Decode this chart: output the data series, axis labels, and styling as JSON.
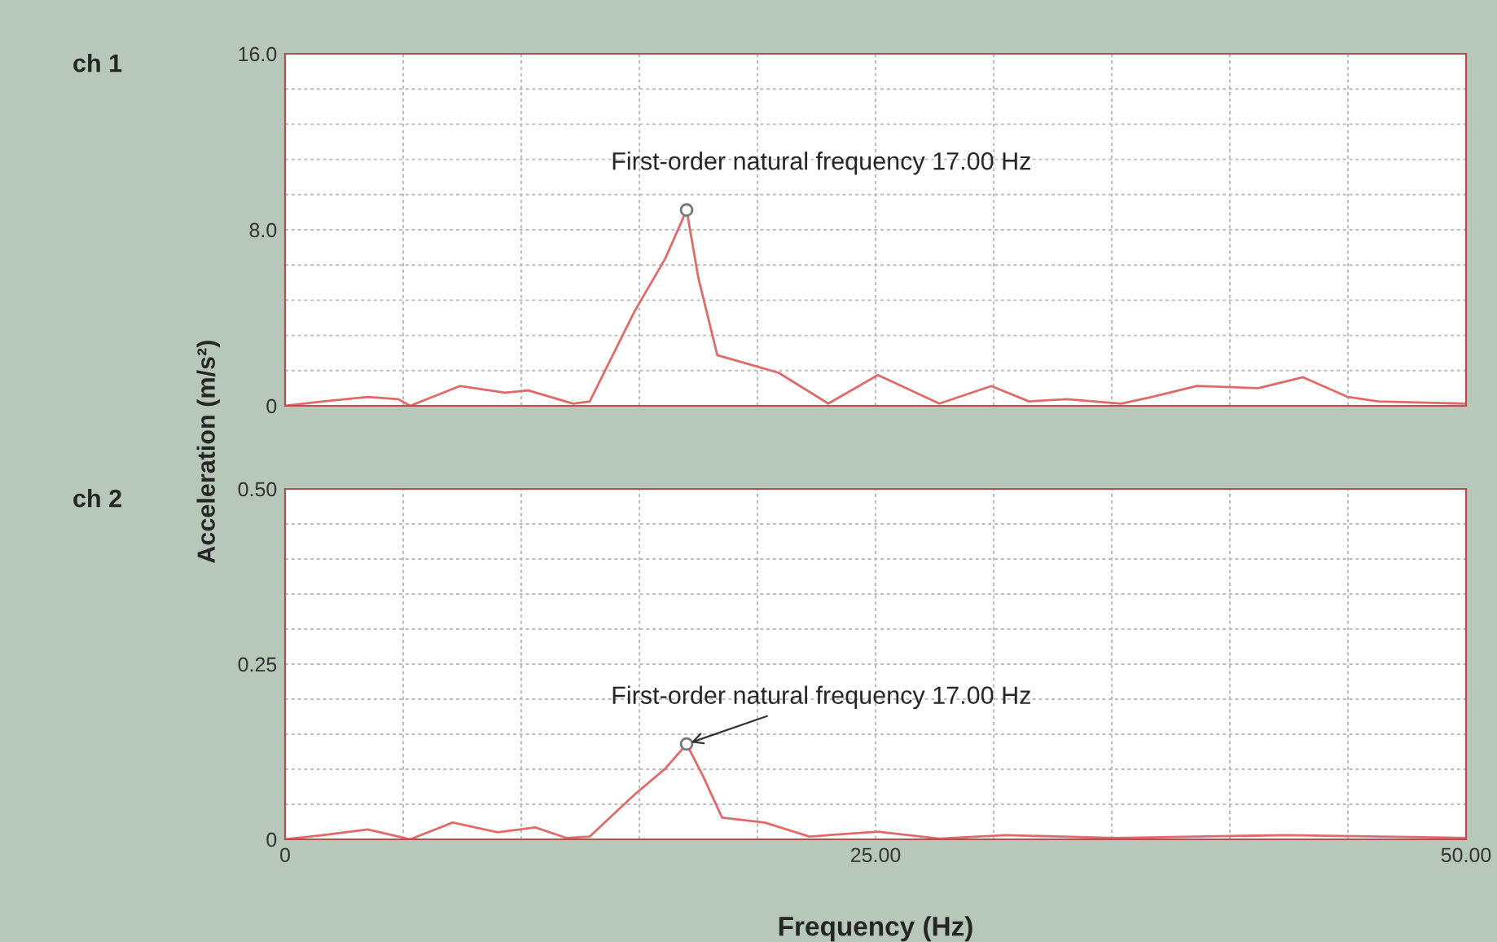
{
  "chart_data": [
    {
      "type": "line",
      "title": "ch 1",
      "ylabel": "Acceleration (m/s²)",
      "tick_labels": "y",
      "grid": true,
      "xlim": [
        0,
        50
      ],
      "ylim": [
        0,
        16
      ],
      "xticks": [
        {
          "value": 0,
          "label": null
        },
        {
          "value": 5,
          "label": null
        },
        {
          "value": 10,
          "label": null
        },
        {
          "value": 15,
          "label": null
        },
        {
          "value": 20,
          "label": null
        },
        {
          "value": 25,
          "label": null
        },
        {
          "value": 30,
          "label": null
        },
        {
          "value": 35,
          "label": null
        },
        {
          "value": 40,
          "label": null
        },
        {
          "value": 45,
          "label": null
        },
        {
          "value": 50,
          "label": null
        }
      ],
      "yticks": [
        {
          "value": 0,
          "label": "0"
        },
        {
          "value": 1.6,
          "label": null
        },
        {
          "value": 3.2,
          "label": null
        },
        {
          "value": 4.8,
          "label": null
        },
        {
          "value": 6.4,
          "label": null
        },
        {
          "value": 8,
          "label": "8.0"
        },
        {
          "value": 9.6,
          "label": null
        },
        {
          "value": 11.2,
          "label": null
        },
        {
          "value": 12.8,
          "label": null
        },
        {
          "value": 14.4,
          "label": null
        },
        {
          "value": 16,
          "label": "16.0"
        }
      ],
      "x": [
        0,
        1.6,
        3.5,
        4.8,
        5.3,
        7.4,
        9.3,
        10.3,
        12.2,
        12.9,
        14.8,
        16.1,
        17.0,
        17.5,
        18.3,
        19.6,
        20.9,
        23.0,
        25.1,
        27.7,
        29.9,
        31.5,
        33.1,
        35.4,
        36.7,
        38.6,
        41.2,
        43.1,
        45.0,
        46.3,
        50
      ],
      "series": [
        {
          "color": "#e06a6a",
          "values": [
            0,
            0.2,
            0.4,
            0.3,
            0,
            0.9,
            0.6,
            0.7,
            0.1,
            0.2,
            4.3,
            6.7,
            8.9,
            5.8,
            2.3,
            1.9,
            1.5,
            0.1,
            1.4,
            0.1,
            0.9,
            0.2,
            0.3,
            0.1,
            0.4,
            0.9,
            0.8,
            1.3,
            0.4,
            0.2,
            0.1
          ]
        }
      ],
      "annotations": [
        {
          "text": "First-order natural frequency 17.00 Hz",
          "x": 17.0,
          "y": 8.9
        }
      ]
    },
    {
      "type": "line",
      "title": "ch 2",
      "xlabel": "Frequency (Hz)",
      "grid": true,
      "xlim": [
        0,
        50
      ],
      "ylim": [
        0,
        0.5
      ],
      "xticks": [
        {
          "value": 0,
          "label": "0"
        },
        {
          "value": 5,
          "label": null
        },
        {
          "value": 10,
          "label": null
        },
        {
          "value": 15,
          "label": null
        },
        {
          "value": 20,
          "label": null
        },
        {
          "value": 25,
          "label": "25.00"
        },
        {
          "value": 30,
          "label": null
        },
        {
          "value": 35,
          "label": null
        },
        {
          "value": 40,
          "label": null
        },
        {
          "value": 45,
          "label": null
        },
        {
          "value": 50,
          "label": "50.00"
        }
      ],
      "yticks": [
        {
          "value": 0,
          "label": "0"
        },
        {
          "value": 0.05,
          "label": null
        },
        {
          "value": 0.1,
          "label": null
        },
        {
          "value": 0.15,
          "label": null
        },
        {
          "value": 0.2,
          "label": null
        },
        {
          "value": 0.25,
          "label": "0.25"
        },
        {
          "value": 0.3,
          "label": null
        },
        {
          "value": 0.35,
          "label": null
        },
        {
          "value": 0.4,
          "label": null
        },
        {
          "value": 0.45,
          "label": null
        },
        {
          "value": 0.5,
          "label": "0.50"
        }
      ],
      "x": [
        0,
        1.6,
        3.5,
        4.8,
        5.3,
        7.1,
        9.0,
        10.6,
        11.9,
        12.9,
        14.8,
        16.1,
        17.0,
        17.7,
        18.5,
        20.3,
        22.2,
        25.1,
        27.7,
        30.5,
        35.1,
        42.4,
        50
      ],
      "series": [
        {
          "color": "#e06a6a",
          "values": [
            0,
            0.006,
            0.014,
            0.004,
            0,
            0.024,
            0.01,
            0.017,
            0.002,
            0.004,
            0.064,
            0.101,
            0.136,
            0.09,
            0.031,
            0.024,
            0.004,
            0.011,
            0.001,
            0.006,
            0.002,
            0.006,
            0.002
          ]
        }
      ],
      "annotations": [
        {
          "text": "First-order natural frequency 17.00 Hz",
          "x": 17.0,
          "y": 0.136
        }
      ]
    }
  ]
}
